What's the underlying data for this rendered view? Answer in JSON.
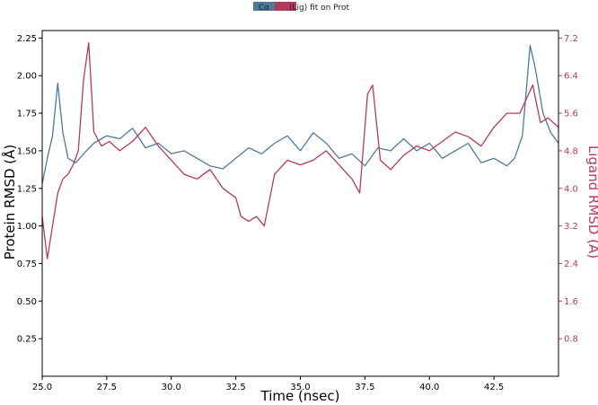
{
  "chart_data": {
    "type": "line",
    "xlabel": "Time (nsec)",
    "ylabel_left": "Protein RMSD (Å)",
    "ylabel_right": "Ligand RMSD (Å)",
    "xlim": [
      25.0,
      45.0
    ],
    "ylim_left": [
      0.0,
      2.3
    ],
    "ylim_right": [
      0.0,
      7.36
    ],
    "x_ticks": [
      "25.0",
      "27.5",
      "30.0",
      "32.5",
      "35.0",
      "37.5",
      "40.0",
      "42.5"
    ],
    "y_ticks_left": [
      "0.25",
      "0.50",
      "0.75",
      "1.00",
      "1.25",
      "1.50",
      "1.75",
      "2.00",
      "2.25"
    ],
    "y_ticks_right": [
      "0.8",
      "1.6",
      "2.4",
      "3.2",
      "4.0",
      "4.8",
      "5.6",
      "6.4",
      "7.2"
    ],
    "legend": {
      "placement": "top-center"
    },
    "series": [
      {
        "name": "Cα",
        "axis": "left",
        "color": "#4e7a9a",
        "x": [
          25.0,
          25.2,
          25.4,
          25.6,
          25.8,
          26.0,
          26.3,
          26.6,
          27.0,
          27.5,
          28.0,
          28.5,
          29.0,
          29.5,
          30.0,
          30.5,
          31.0,
          31.5,
          32.0,
          32.5,
          33.0,
          33.5,
          34.0,
          34.5,
          35.0,
          35.5,
          36.0,
          36.5,
          37.0,
          37.5,
          38.0,
          38.5,
          39.0,
          39.5,
          40.0,
          40.5,
          41.0,
          41.5,
          42.0,
          42.5,
          43.0,
          43.3,
          43.6,
          43.9,
          44.1,
          44.4,
          44.7,
          45.0
        ],
        "values": [
          1.28,
          1.45,
          1.6,
          1.95,
          1.62,
          1.45,
          1.42,
          1.48,
          1.55,
          1.6,
          1.58,
          1.65,
          1.52,
          1.55,
          1.48,
          1.5,
          1.45,
          1.4,
          1.38,
          1.45,
          1.52,
          1.48,
          1.55,
          1.6,
          1.5,
          1.62,
          1.55,
          1.45,
          1.48,
          1.4,
          1.52,
          1.5,
          1.58,
          1.5,
          1.55,
          1.45,
          1.5,
          1.55,
          1.42,
          1.45,
          1.4,
          1.45,
          1.6,
          2.2,
          2.05,
          1.75,
          1.62,
          1.55
        ]
      },
      {
        "name": "(Lig) fit on Prot",
        "axis": "right",
        "color": "#b23a5f",
        "x": [
          25.0,
          25.2,
          25.4,
          25.6,
          25.8,
          26.0,
          26.2,
          26.4,
          26.6,
          26.8,
          27.0,
          27.3,
          27.6,
          28.0,
          28.5,
          29.0,
          29.5,
          30.0,
          30.5,
          31.0,
          31.5,
          32.0,
          32.5,
          32.7,
          33.0,
          33.3,
          33.6,
          34.0,
          34.5,
          35.0,
          35.5,
          36.0,
          36.5,
          37.0,
          37.3,
          37.6,
          37.8,
          38.1,
          38.5,
          39.0,
          39.5,
          40.0,
          40.5,
          41.0,
          41.5,
          42.0,
          42.5,
          43.0,
          43.5,
          44.0,
          44.3,
          44.6,
          45.0
        ],
        "values": [
          3.4,
          2.5,
          3.2,
          3.9,
          4.2,
          4.3,
          4.5,
          4.8,
          6.3,
          7.1,
          5.2,
          4.9,
          5.0,
          4.8,
          5.0,
          5.3,
          4.9,
          4.6,
          4.3,
          4.2,
          4.4,
          4.0,
          3.8,
          3.4,
          3.3,
          3.4,
          3.2,
          4.3,
          4.6,
          4.5,
          4.6,
          4.8,
          4.5,
          4.2,
          3.9,
          6.0,
          6.2,
          4.6,
          4.4,
          4.7,
          4.9,
          4.8,
          5.0,
          5.2,
          5.1,
          4.9,
          5.3,
          5.6,
          5.6,
          6.2,
          5.4,
          5.5,
          5.3
        ]
      }
    ]
  }
}
